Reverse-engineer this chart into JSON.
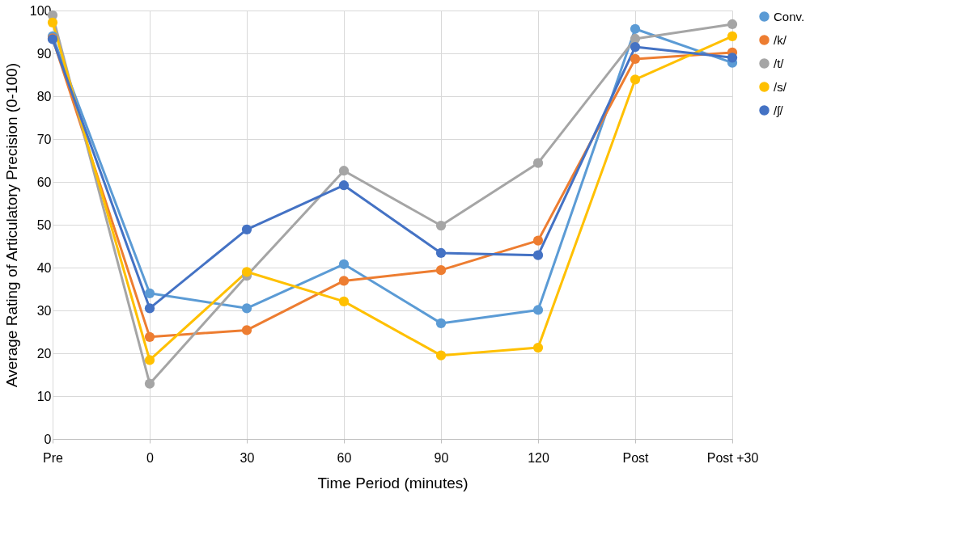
{
  "chart_data": {
    "type": "line",
    "xlabel": "Time Period (minutes)",
    "ylabel": "Average Rating of Articulatory  Precision (0-100)",
    "categories": [
      "Pre",
      "0",
      "30",
      "60",
      "90",
      "120",
      "Post",
      "Post +30"
    ],
    "series": [
      {
        "name": "Conv.",
        "color": "#5b9bd5",
        "values": [
          94.0,
          34.0,
          30.5,
          40.8,
          27.0,
          30.1,
          95.7,
          87.8
        ]
      },
      {
        "name": "/k/",
        "color": "#ed7d31",
        "values": [
          93.5,
          23.8,
          25.4,
          36.9,
          39.4,
          46.3,
          88.7,
          90.2
        ]
      },
      {
        "name": "/t/",
        "color": "#a5a5a5",
        "values": [
          98.9,
          12.9,
          38.1,
          62.6,
          49.8,
          64.4,
          93.4,
          96.8
        ]
      },
      {
        "name": "/s/",
        "color": "#ffc000",
        "values": [
          97.2,
          18.4,
          39.0,
          32.1,
          19.5,
          21.3,
          83.9,
          94.0
        ]
      },
      {
        "name": "/ʃ/",
        "color": "#4472c4",
        "values": [
          93.3,
          30.5,
          48.9,
          59.2,
          43.4,
          42.9,
          91.5,
          89.0
        ]
      }
    ],
    "ylim": [
      0,
      100
    ],
    "yticks": [
      0,
      10,
      20,
      30,
      40,
      50,
      60,
      70,
      80,
      90,
      100
    ],
    "grid": true,
    "legend": "right",
    "marker": "circle",
    "line_style": "solid"
  }
}
